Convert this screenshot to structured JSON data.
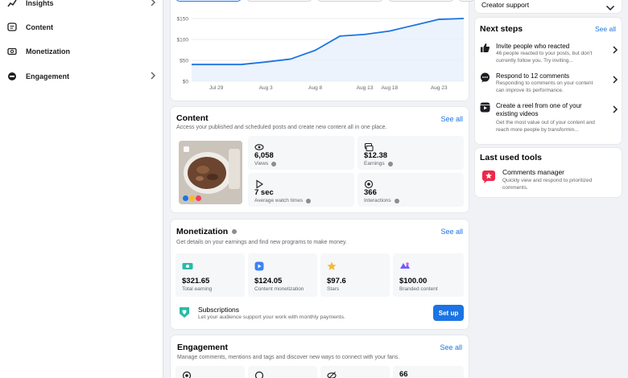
{
  "sidebar": {
    "items": [
      {
        "label": "Insights",
        "icon": "trend-icon",
        "has_chevron": true
      },
      {
        "label": "Content",
        "icon": "content-icon",
        "has_chevron": false
      },
      {
        "label": "Monetization",
        "icon": "monetization-icon",
        "has_chevron": false
      },
      {
        "label": "Engagement",
        "icon": "engagement-icon",
        "has_chevron": true
      }
    ]
  },
  "overview_chart": {
    "accent": "#1b74e4"
  },
  "chart_data": {
    "type": "area",
    "x": [
      "Jul 26",
      "Jul 29",
      "Aug 1",
      "Aug 3",
      "Aug 6",
      "Aug 8",
      "Aug 11",
      "Aug 13",
      "Aug 18",
      "Aug 21",
      "Aug 23",
      "Aug 25"
    ],
    "x_ticks": [
      "Jul 29",
      "Aug 3",
      "Aug 8",
      "Aug 13",
      "Aug 18",
      "Aug 23"
    ],
    "series": [
      {
        "values": [
          40,
          40,
          40,
          46,
          53,
          74,
          108,
          112,
          120,
          134,
          148,
          150
        ]
      }
    ],
    "y_ticks": [
      "$150",
      "$100",
      "$50",
      "$0"
    ],
    "ylim": [
      0,
      150
    ],
    "grid": true,
    "title": "",
    "xlabel": "",
    "ylabel": ""
  },
  "content": {
    "title": "Content",
    "subtitle": "Access your published and scheduled posts and create new content all in one place.",
    "see_all": "See all",
    "stats": [
      {
        "value": "6,058",
        "label": "Views",
        "icon": "eye-icon",
        "info": true
      },
      {
        "value": "$12.38",
        "label": "Earnings",
        "icon": "money-stack-icon",
        "info": true
      },
      {
        "value": "7 sec",
        "label": "Average watch times",
        "icon": "play-icon",
        "info": true
      },
      {
        "value": "366",
        "label": "Interactions",
        "icon": "interaction-icon",
        "info": true
      }
    ]
  },
  "monetization": {
    "title": "Monetization",
    "subtitle": "Get details on your earnings and find new programs to make money.",
    "see_all": "See all",
    "stats": [
      {
        "value": "$321.65",
        "label": "Total earning",
        "icon": "cash-icon"
      },
      {
        "value": "$124.05",
        "label": "Content monetization",
        "icon": "content-monetization-icon"
      },
      {
        "value": "$97.6",
        "label": "Stars",
        "icon": "star-icon"
      },
      {
        "value": "$100.00",
        "label": "Branded content",
        "icon": "branded-content-icon"
      }
    ],
    "subscriptions": {
      "title": "Subscriptions",
      "desc": "Let your audience support your work with monthly payments.",
      "button": "Set up"
    }
  },
  "engagement": {
    "title": "Engagement",
    "subtitle": "Manage comments, mentions and tags and discover new ways to connect with your fans.",
    "see_all": "See all",
    "tile_values": [
      "",
      "",
      "",
      "66"
    ]
  },
  "right": {
    "creator_support": "Creator support",
    "next_steps": {
      "title": "Next steps",
      "see_all": "See all",
      "items": [
        {
          "title": "Invite people who reacted",
          "desc": "46 people reacted to your posts, but don't currently follow you. Try inviting...",
          "icon": "thumbs-up-icon"
        },
        {
          "title": "Respond to 12 comments",
          "desc": "Responding to comments on your content can improve its performance.",
          "icon": "comment-icon"
        },
        {
          "title": "Create a reel from one of your existing videos",
          "desc": "Get the most value out of your content and reach more people by transformin...",
          "icon": "reel-icon"
        }
      ]
    },
    "last_used": {
      "title": "Last used tools",
      "tool_title": "Comments manager",
      "tool_desc": "Quickly view and respond to prioritized comments."
    }
  }
}
